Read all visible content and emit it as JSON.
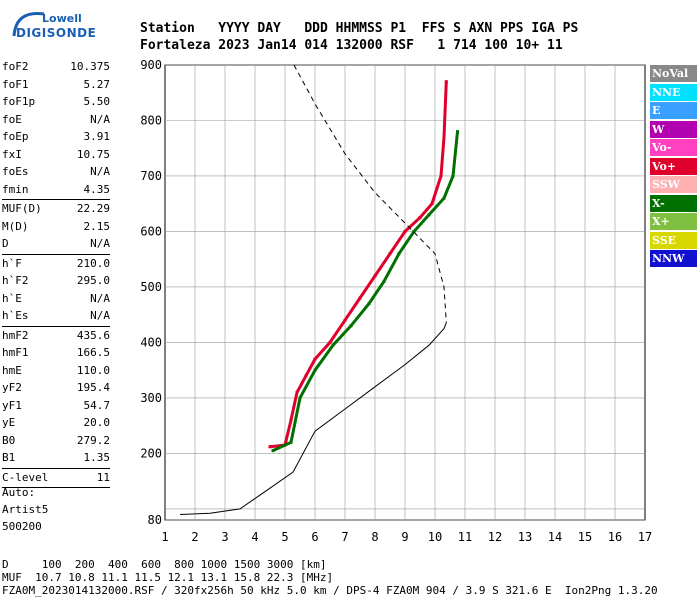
{
  "logo": {
    "line1": "Lowell",
    "line2": "DIGISONDE"
  },
  "header": {
    "line1": "Station   YYYY DAY   DDD HHMMSS P1  FFS S AXN PPS IGA PS",
    "line2": "Fortaleza 2023 Jan14 014 132000 RSF   1 714 100 10+ 11"
  },
  "params": [
    {
      "label": "foF2",
      "value": "10.375"
    },
    {
      "label": "foF1",
      "value": "5.27"
    },
    {
      "label": "foF1p",
      "value": "5.50"
    },
    {
      "label": "foE",
      "value": "N/A"
    },
    {
      "label": "foEp",
      "value": "3.91"
    },
    {
      "label": "fxI",
      "value": "10.75"
    },
    {
      "label": "foEs",
      "value": "N/A"
    },
    {
      "label": "fmin",
      "value": "4.35"
    },
    {
      "label": "MUF(D)",
      "value": "22.29"
    },
    {
      "label": "M(D)",
      "value": "2.15"
    },
    {
      "label": "D",
      "value": "N/A"
    },
    {
      "label": "h`F",
      "value": "210.0"
    },
    {
      "label": "h`F2",
      "value": "295.0"
    },
    {
      "label": "h`E",
      "value": "N/A"
    },
    {
      "label": "h`Es",
      "value": "N/A"
    },
    {
      "label": "hmF2",
      "value": "435.6"
    },
    {
      "label": "hmF1",
      "value": "166.5"
    },
    {
      "label": "hmE",
      "value": "110.0"
    },
    {
      "label": "yF2",
      "value": "195.4"
    },
    {
      "label": "yF1",
      "value": "54.7"
    },
    {
      "label": "yE",
      "value": "20.0"
    },
    {
      "label": "B0",
      "value": "279.2"
    },
    {
      "label": "B1",
      "value": "1.35"
    },
    {
      "label": "C-level",
      "value": "11"
    }
  ],
  "auto": {
    "line1": "Auto:",
    "line2": "Artist5",
    "line3": "500200"
  },
  "legend": [
    {
      "label": "NoVal",
      "color": "#888888"
    },
    {
      "label": "NNE",
      "color": "#00e0ff"
    },
    {
      "label": "E",
      "color": "#3aa0ff"
    },
    {
      "label": "W",
      "color": "#b000b0"
    },
    {
      "label": "Vo-",
      "color": "#ff40c0"
    },
    {
      "label": "Vo+",
      "color": "#e0002c"
    },
    {
      "label": "SSW",
      "color": "#ffb0b0"
    },
    {
      "label": "X-",
      "color": "#007000"
    },
    {
      "label": "X+",
      "color": "#80c040"
    },
    {
      "label": "SSE",
      "color": "#d8d800"
    },
    {
      "label": "NNW",
      "color": "#1010d0"
    }
  ],
  "footer": {
    "line1": "D     100  200  400  600  800 1000 1500 3000 [km]",
    "line2": "MUF  10.7 10.8 11.1 11.5 12.1 13.1 15.8 22.3 [MHz]",
    "line3": "FZA0M_2023014132000.RSF / 320fx256h 50 kHz 5.0 km / DPS-4 FZA0M 904 / 3.9 S 321.6 E  Ion2Png 1.3.20"
  },
  "chart_data": {
    "type": "scatter",
    "title": "",
    "xlabel": "",
    "ylabel": "",
    "xlim": [
      1,
      17
    ],
    "ylim": [
      80,
      900
    ],
    "x_ticks": [
      1,
      2,
      3,
      4,
      5,
      6,
      7,
      8,
      9,
      10,
      11,
      12,
      13,
      14,
      15,
      16,
      17
    ],
    "y_ticks": [
      80,
      100,
      200,
      300,
      400,
      500,
      600,
      700,
      800,
      900
    ],
    "y_tick_labels": [
      80,
      200,
      300,
      400,
      500,
      600,
      700,
      800,
      900
    ],
    "grid": true,
    "series": [
      {
        "name": "Vo+",
        "values": [
          [
            4.5,
            212
          ],
          [
            5.0,
            215
          ],
          [
            5.2,
            260
          ],
          [
            5.4,
            310
          ],
          [
            5.7,
            340
          ],
          [
            6.0,
            370
          ],
          [
            6.5,
            400
          ],
          [
            7.0,
            440
          ],
          [
            7.5,
            480
          ],
          [
            8.0,
            520
          ],
          [
            8.5,
            560
          ],
          [
            9.0,
            600
          ],
          [
            9.5,
            625
          ],
          [
            9.9,
            650
          ],
          [
            10.2,
            700
          ],
          [
            10.3,
            770
          ],
          [
            10.375,
            870
          ]
        ]
      },
      {
        "name": "X-",
        "values": [
          [
            4.6,
            205
          ],
          [
            5.2,
            220
          ],
          [
            5.5,
            300
          ],
          [
            6.0,
            350
          ],
          [
            6.6,
            395
          ],
          [
            7.2,
            430
          ],
          [
            7.8,
            470
          ],
          [
            8.3,
            510
          ],
          [
            8.8,
            560
          ],
          [
            9.3,
            600
          ],
          [
            9.8,
            630
          ],
          [
            10.3,
            660
          ],
          [
            10.6,
            700
          ],
          [
            10.75,
            780
          ]
        ]
      },
      {
        "name": "True height profile",
        "values": [
          [
            1.5,
            90
          ],
          [
            2.5,
            92
          ],
          [
            3.5,
            100
          ],
          [
            4.3,
            130
          ],
          [
            5.27,
            166.5
          ],
          [
            6.0,
            240
          ],
          [
            7.0,
            280
          ],
          [
            8.0,
            320
          ],
          [
            9.0,
            360
          ],
          [
            9.8,
            395
          ],
          [
            10.3,
            425
          ],
          [
            10.375,
            435.6
          ]
        ]
      },
      {
        "name": "Model profile",
        "values": [
          [
            5.3,
            900
          ],
          [
            6.0,
            830
          ],
          [
            7.0,
            740
          ],
          [
            8.0,
            670
          ],
          [
            9.0,
            615
          ],
          [
            10.0,
            560
          ],
          [
            10.3,
            500
          ],
          [
            10.375,
            435.6
          ]
        ]
      }
    ]
  }
}
